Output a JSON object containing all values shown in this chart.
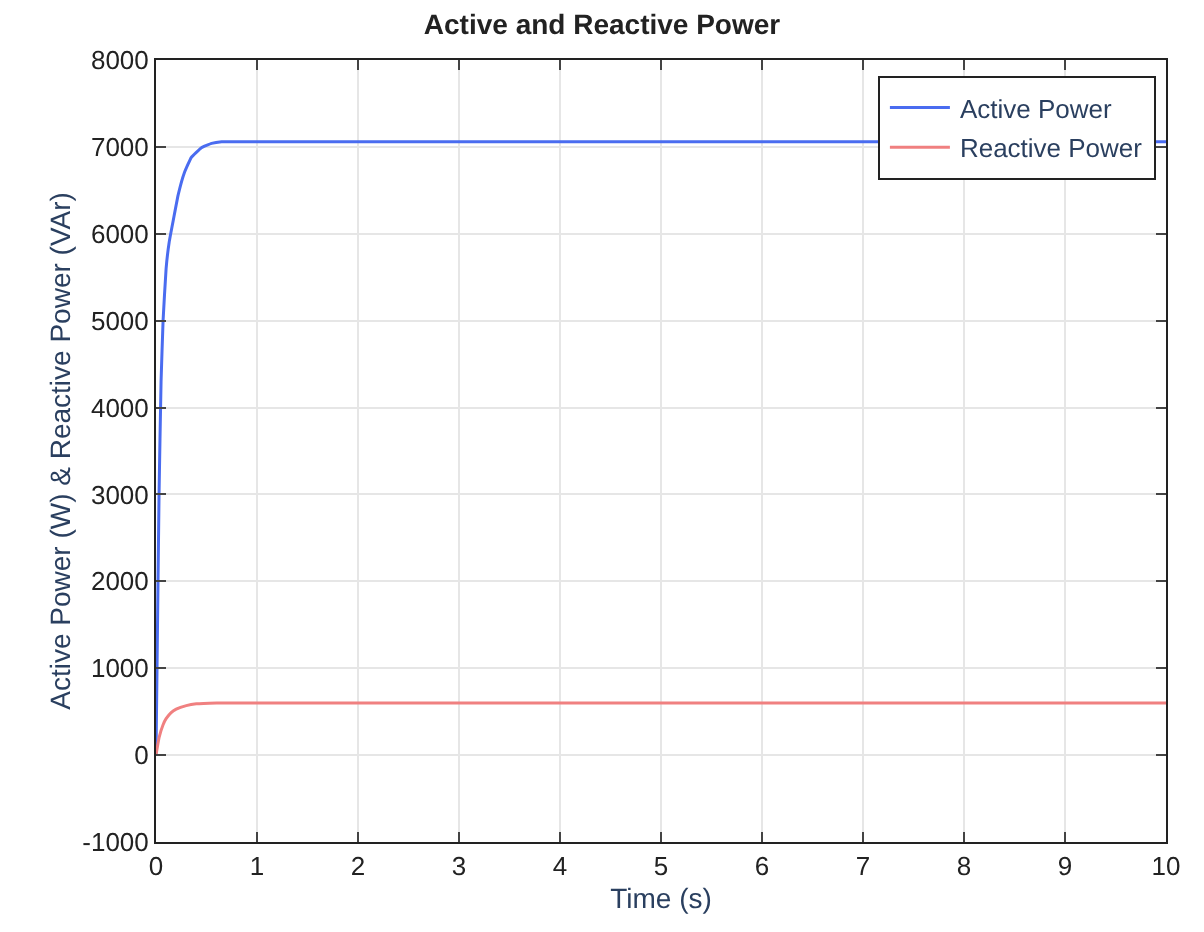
{
  "chart_data": {
    "type": "line",
    "title": "Active and Reactive Power",
    "xlabel": "Time (s)",
    "ylabel": "Active Power (W) & Reactive Power (VAr)",
    "xlim": [
      0,
      10
    ],
    "xticks": [
      0,
      1,
      2,
      3,
      4,
      5,
      6,
      7,
      8,
      9,
      10
    ],
    "ylim": [
      -1000,
      8000
    ],
    "yticks": [
      -1000,
      0,
      1000,
      2000,
      3000,
      4000,
      5000,
      6000,
      7000,
      8000
    ],
    "grid": true,
    "legend": "top right",
    "series": [
      {
        "name": "Active Power",
        "color": "#4a6cf0",
        "x": [
          0,
          0.01,
          0.03,
          0.05,
          0.07,
          0.1,
          0.13,
          0.17,
          0.22,
          0.28,
          0.35,
          0.45,
          0.55,
          0.65,
          0.8,
          1,
          2,
          4,
          6,
          10
        ],
        "values": [
          0,
          1000,
          3000,
          4300,
          5000,
          5600,
          5900,
          6150,
          6450,
          6700,
          6880,
          6990,
          7040,
          7060,
          7060,
          7060,
          7060,
          7060,
          7060,
          7060
        ]
      },
      {
        "name": "Reactive Power",
        "color": "#f08080",
        "x": [
          0,
          0.03,
          0.07,
          0.1,
          0.15,
          0.2,
          0.3,
          0.4,
          0.6,
          1,
          2,
          4,
          6,
          8,
          10
        ],
        "values": [
          0,
          200,
          350,
          420,
          490,
          530,
          570,
          590,
          600,
          600,
          600,
          600,
          600,
          600,
          600
        ]
      }
    ]
  }
}
